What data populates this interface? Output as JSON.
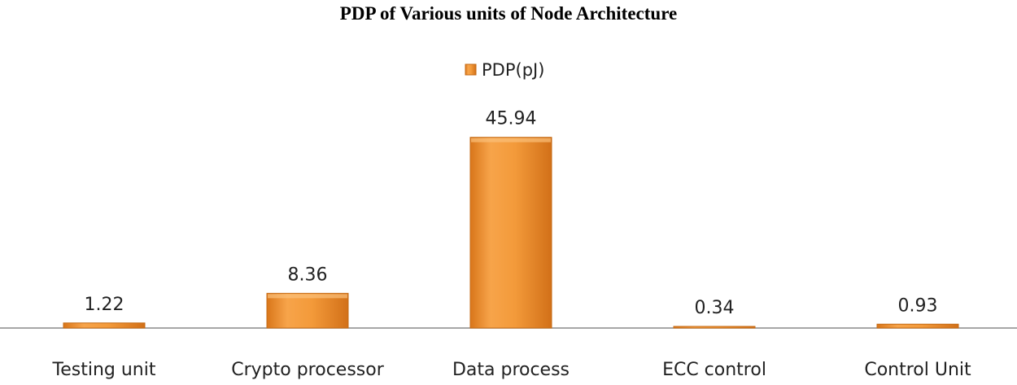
{
  "chart_data": {
    "type": "bar",
    "title": "PDP of Various units of Node Architecture",
    "categories": [
      "Testing unit",
      "Crypto processor",
      "Data process",
      "ECC control",
      "Control Unit"
    ],
    "series": [
      {
        "name": "PDP(pJ)",
        "values": [
          1.22,
          8.36,
          45.94,
          0.34,
          0.93
        ],
        "color": "#F0962F"
      }
    ],
    "data_labels": [
      "1.22",
      "8.36",
      "45.94",
      "0.34",
      "0.93"
    ],
    "ylim": [
      0,
      50
    ],
    "legend_position": "top-center",
    "grid": false,
    "xlabel": "",
    "ylabel": ""
  }
}
